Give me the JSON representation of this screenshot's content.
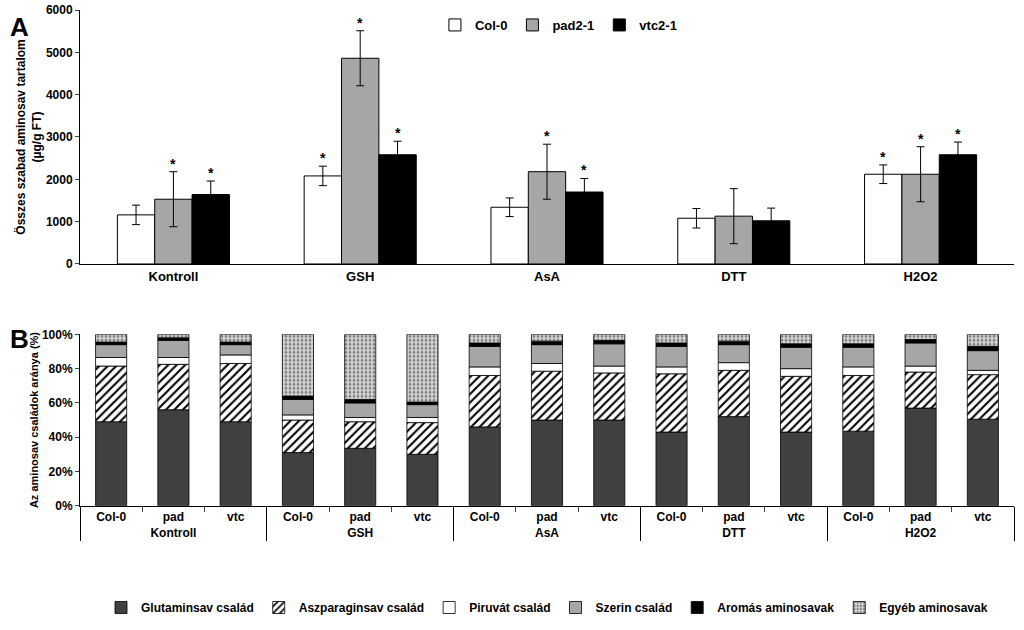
{
  "chart_data": [
    {
      "type": "bar",
      "title": "A",
      "categories": [
        "Kontroll",
        "GSH",
        "AsA",
        "DTT",
        "H2O2"
      ],
      "ylabel": "Összes szabad aminosav tartalom\n(µg/g FT)",
      "ylim": [
        0,
        6000
      ],
      "yticks": [
        0,
        1000,
        2000,
        3000,
        4000,
        5000,
        6000
      ],
      "grid": false,
      "legend": "top",
      "series": [
        {
          "name": "Col-0",
          "color": "#ffffff",
          "values": [
            1160,
            2080,
            1340,
            1080,
            2120
          ],
          "errors": [
            230,
            230,
            220,
            230,
            220
          ]
        },
        {
          "name": "pad2-1",
          "color": "#a6a6a6",
          "values": [
            1530,
            4860,
            2180,
            1130,
            2120
          ],
          "errors": [
            650,
            650,
            650,
            650,
            650
          ]
        },
        {
          "name": "vtc2-1",
          "color": "#000000",
          "values": [
            1640,
            2580,
            1700,
            1020,
            2580
          ],
          "errors": [
            320,
            320,
            320,
            300,
            300
          ]
        }
      ],
      "annotations": [
        {
          "category": "Kontroll",
          "series": "pad2-1",
          "text": "*"
        },
        {
          "category": "Kontroll",
          "series": "vtc2-1",
          "text": "*"
        },
        {
          "category": "GSH",
          "series": "Col-0",
          "text": "*"
        },
        {
          "category": "GSH",
          "series": "pad2-1",
          "text": "*"
        },
        {
          "category": "GSH",
          "series": "vtc2-1",
          "text": "*"
        },
        {
          "category": "AsA",
          "series": "pad2-1",
          "text": "*"
        },
        {
          "category": "AsA",
          "series": "vtc2-1",
          "text": "*"
        },
        {
          "category": "H2O2",
          "series": "Col-0",
          "text": "*"
        },
        {
          "category": "H2O2",
          "series": "pad2-1",
          "text": "*"
        },
        {
          "category": "H2O2",
          "series": "vtc2-1",
          "text": "*"
        }
      ]
    },
    {
      "type": "bar",
      "title": "B",
      "stacked": true,
      "categories": [
        [
          "Kontroll",
          "Col-0"
        ],
        [
          "Kontroll",
          "pad"
        ],
        [
          "Kontroll",
          "vtc"
        ],
        [
          "GSH",
          "Col-0"
        ],
        [
          "GSH",
          "pad"
        ],
        [
          "GSH",
          "vtc"
        ],
        [
          "AsA",
          "Col-0"
        ],
        [
          "AsA",
          "pad"
        ],
        [
          "AsA",
          "vtc"
        ],
        [
          "DTT",
          "Col-0"
        ],
        [
          "DTT",
          "pad"
        ],
        [
          "DTT",
          "vtc"
        ],
        [
          "H2O2",
          "Col-0"
        ],
        [
          "H2O2",
          "pad"
        ],
        [
          "H2O2",
          "vtc"
        ]
      ],
      "ylabel": "Az aminosav családok aránya (%)",
      "ylim": [
        0,
        100
      ],
      "yticks": [
        {
          "value": 0,
          "label": "0%"
        },
        {
          "value": 20,
          "label": "20%"
        },
        {
          "value": 40,
          "label": "40%"
        },
        {
          "value": 60,
          "label": "60%"
        },
        {
          "value": 80,
          "label": "80%"
        },
        {
          "value": 100,
          "label": "100%"
        }
      ],
      "grid": false,
      "legend": "bottom",
      "series": [
        {
          "name": "Glutaminsav család",
          "color": "#404040",
          "values": [
            49,
            56,
            49,
            31,
            33.5,
            30,
            46,
            50,
            50,
            43,
            52,
            43,
            43.5,
            57,
            50.5
          ]
        },
        {
          "name": "Aszparaginsav család",
          "color": "#ffffff",
          "marker": "hatched",
          "values": [
            32.5,
            26.5,
            34,
            19,
            15.5,
            18.5,
            30,
            28.5,
            27.5,
            34,
            27,
            32.5,
            32.5,
            21,
            26
          ]
        },
        {
          "name": "Piruvát család",
          "color": "#ffffff",
          "values": [
            5,
            4,
            5,
            3,
            2.5,
            3,
            5,
            4.5,
            4,
            4,
            4.5,
            4.5,
            5,
            3.5,
            2.5
          ]
        },
        {
          "name": "Szerin család",
          "color": "#a6a6a6",
          "values": [
            7.5,
            10,
            6,
            9,
            8.5,
            7.5,
            12,
            11,
            13,
            12,
            10.5,
            12.5,
            11.5,
            13.5,
            11.5
          ]
        },
        {
          "name": "Aromás aminosavak",
          "color": "#000000",
          "values": [
            1.5,
            1.5,
            1.5,
            2,
            2,
            1.5,
            2,
            2,
            2,
            2,
            2,
            2,
            2,
            2,
            2.5
          ]
        },
        {
          "name": "Egyéb aminosavak",
          "color": "#d9d9d9",
          "marker": "speckled",
          "values": [
            4.5,
            2,
            4.5,
            36,
            38,
            39.5,
            5,
            4,
            3.5,
            5,
            4,
            5.5,
            5.5,
            3,
            7
          ]
        }
      ]
    }
  ]
}
